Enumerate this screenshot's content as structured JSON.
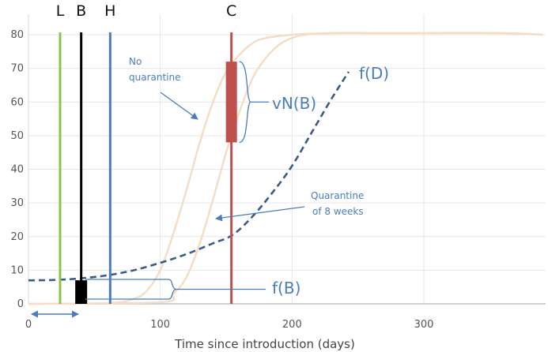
{
  "chart_data": {
    "type": "line",
    "title": "",
    "xlabel": "Time since introduction (days)",
    "ylabel": "",
    "xlim": [
      0,
      390
    ],
    "ylim": [
      0,
      82
    ],
    "x_ticks": [
      0,
      100,
      200,
      300
    ],
    "y_ticks": [
      0,
      10,
      20,
      30,
      40,
      50,
      60,
      70,
      80
    ],
    "grid": true,
    "series": [
      {
        "name": "No quarantine",
        "color": "#f5dcc4",
        "x": [
          0,
          60,
          80,
          90,
          100,
          110,
          120,
          130,
          140,
          150,
          160,
          170,
          180,
          200,
          230,
          260,
          300,
          360,
          390
        ],
        "y": [
          0,
          0.2,
          1.5,
          4,
          10,
          21,
          34,
          48,
          60,
          69,
          74,
          77.5,
          79,
          80,
          80.5,
          80.5,
          80.5,
          80.5,
          80
        ]
      },
      {
        "name": "Quarantine of 8 weeks",
        "color": "#f5dcc4",
        "x": [
          0,
          100,
          110,
          120,
          130,
          140,
          150,
          160,
          170,
          180,
          190,
          200,
          210,
          230,
          260,
          300,
          360,
          390
        ],
        "y": [
          0,
          0.5,
          3,
          8,
          18,
          31,
          45,
          57,
          67,
          73,
          77,
          79,
          80,
          80.5,
          80.5,
          80.5,
          80.5,
          80
        ]
      },
      {
        "name": "f(D)",
        "color": "#3a5a8c",
        "style": "dashed",
        "x": [
          0,
          20,
          40,
          60,
          80,
          100,
          120,
          140,
          155,
          170,
          185,
          200,
          215,
          230,
          243
        ],
        "y": [
          7,
          7.1,
          7.6,
          8.5,
          10,
          12.2,
          14.8,
          18,
          20.5,
          26,
          33,
          41,
          51,
          61,
          69
        ]
      }
    ],
    "vertical_lines": [
      {
        "label": "L",
        "x": 24,
        "color": "#8dc24f"
      },
      {
        "label": "B",
        "x": 40,
        "color": "#000000"
      },
      {
        "label": "H",
        "x": 62,
        "color": "#4a7ebb"
      },
      {
        "label": "C",
        "x": 154,
        "color": "#c0504d"
      }
    ],
    "boxes": [
      {
        "name": "vN(B)",
        "x": 154,
        "y0": 48,
        "y1": 72,
        "color": "#c0504d"
      },
      {
        "name": "f(B)",
        "x": 40,
        "y0": 0,
        "y1": 7,
        "color": "#000000"
      }
    ],
    "annotations": {
      "no_quarantine": [
        "No",
        "quarantine"
      ],
      "quarantine": [
        "Quarantine",
        "of 8 weeks"
      ],
      "vnb": "vN(B)",
      "fb": "f(B)",
      "fd": "f(D)"
    }
  }
}
